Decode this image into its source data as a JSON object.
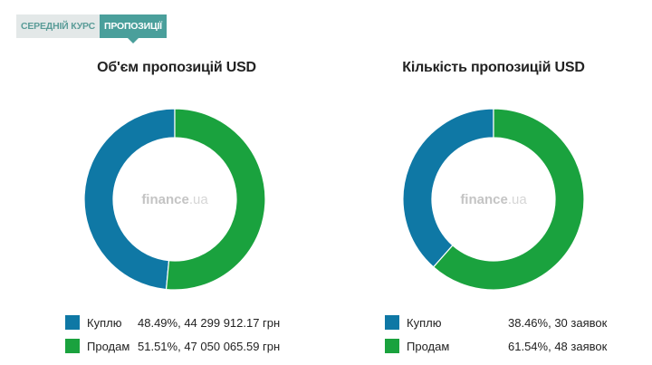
{
  "tabs": [
    {
      "label": "СЕРЕДНІЙ КУРС",
      "active": false
    },
    {
      "label": "ПРОПОЗИЦІЇ",
      "active": true
    }
  ],
  "colors": {
    "buy": "#0f78a5",
    "sell": "#1aa23e",
    "hole": "#ffffff"
  },
  "watermark": {
    "brand": "finance",
    "suffix": ".ua"
  },
  "chart_data": [
    {
      "type": "pie",
      "title": "Об'єм пропозицій USD",
      "categories": [
        "Куплю",
        "Продам"
      ],
      "values": [
        48.49,
        51.51
      ],
      "value_labels": [
        "48.49%, 44 299 912.17 грн",
        "51.51%, 47 050 065.59 грн"
      ]
    },
    {
      "type": "pie",
      "title": "Кількість пропозицій USD",
      "categories": [
        "Куплю",
        "Продам"
      ],
      "values": [
        38.46,
        61.54
      ],
      "value_labels": [
        "38.46%, 30 заявок",
        "61.54%, 48 заявок"
      ]
    }
  ]
}
